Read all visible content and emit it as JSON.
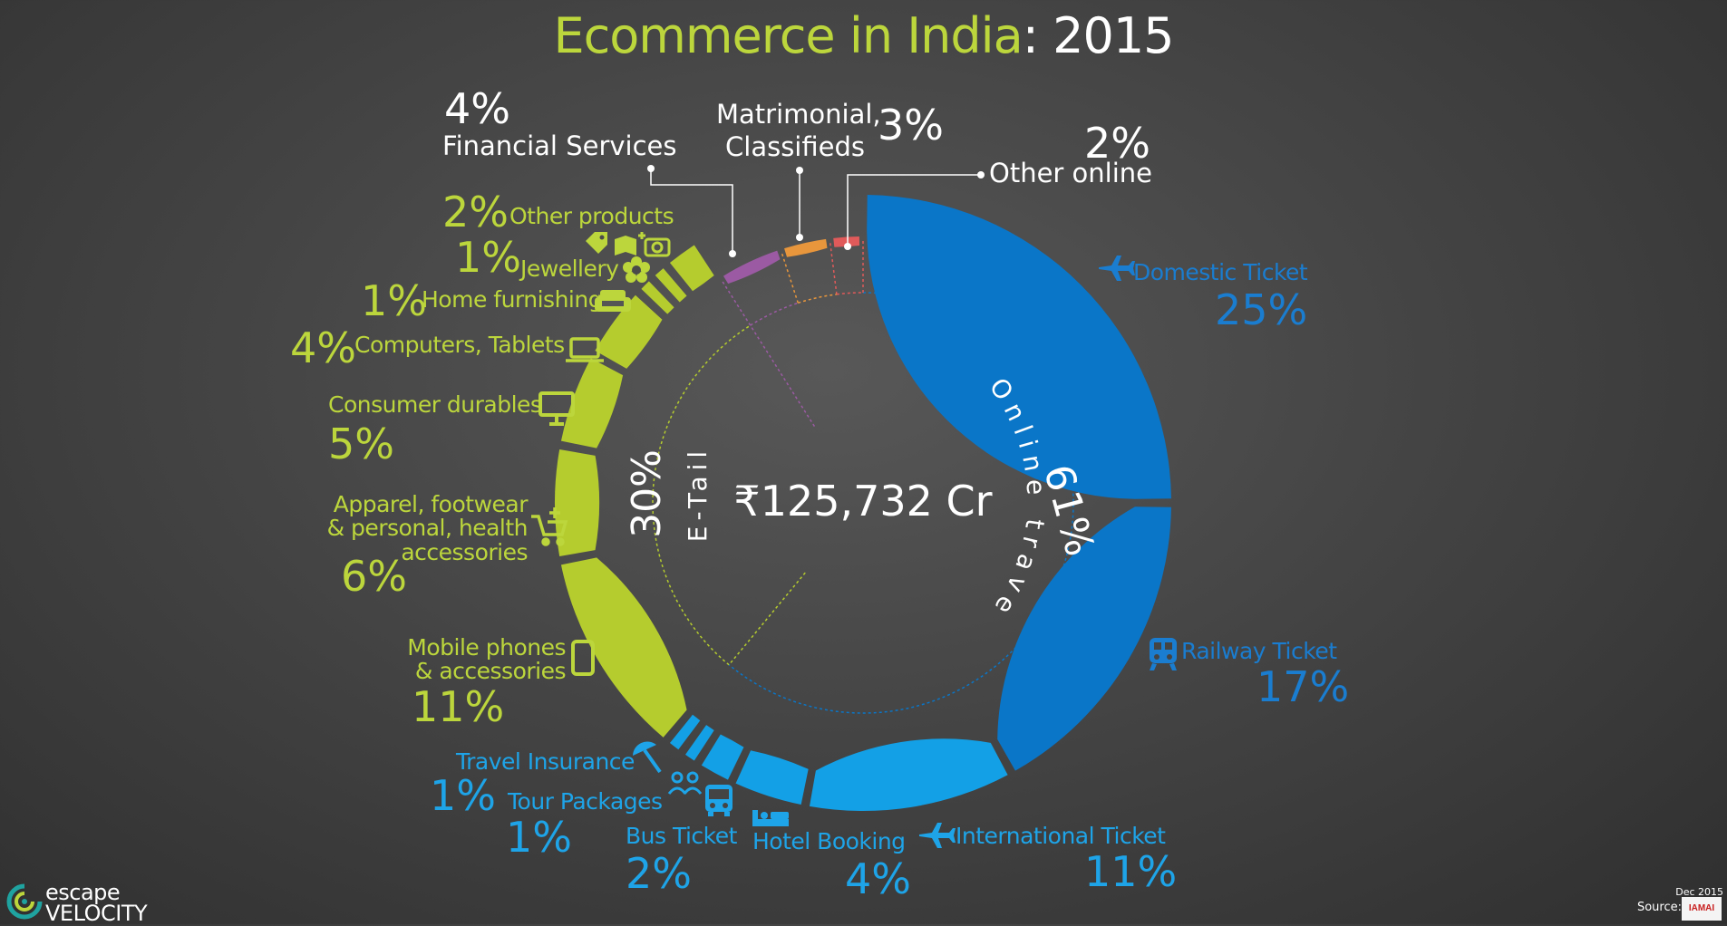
{
  "title": {
    "part1": "Ecommerce in India",
    "sep": ":",
    "part2": " 2015"
  },
  "chart_data": {
    "type": "pie",
    "title": "Ecommerce in India: 2015",
    "center_label": "₹125,732 Cr",
    "groups": [
      {
        "name": "Online travel",
        "value_label": "61%"
      },
      {
        "name": "E-Tail",
        "value_label": "30%"
      }
    ],
    "slices": [
      {
        "name": "Domestic Ticket",
        "value": 25,
        "label": "25%"
      },
      {
        "name": "Railway Ticket",
        "value": 17,
        "label": "17%"
      },
      {
        "name": "International Ticket",
        "value": 11,
        "label": "11%"
      },
      {
        "name": "Hotel Booking",
        "value": 4,
        "label": "4%"
      },
      {
        "name": "Bus Ticket",
        "value": 2,
        "label": "2%"
      },
      {
        "name": "Tour Packages",
        "value": 1,
        "label": "1%"
      },
      {
        "name": "Travel Insurance",
        "value": 1,
        "label": "1%"
      },
      {
        "name": "Mobile phones & accessories",
        "value": 11,
        "label": "11%"
      },
      {
        "name": "Apparel, footwear & personal, health accessories",
        "value": 6,
        "label": "6%"
      },
      {
        "name": "Consumer durables",
        "value": 5,
        "label": "5%"
      },
      {
        "name": "Computers, Tablets",
        "value": 4,
        "label": "4%"
      },
      {
        "name": "Home furnishing",
        "value": 1,
        "label": "1%"
      },
      {
        "name": "Jewellery",
        "value": 1,
        "label": "1%"
      },
      {
        "name": "Other products",
        "value": 2,
        "label": "2%"
      },
      {
        "name": "Financial Services",
        "value": 4,
        "label": "4%"
      },
      {
        "name": "Matrimonial, Classifieds",
        "value": 3,
        "label": "3%"
      },
      {
        "name": "Other online",
        "value": 2,
        "label": "2%"
      }
    ],
    "colors": {
      "online_travel_dark": "#0a76c8",
      "online_travel_light": "#13a0e6",
      "etail": "#b5cc2e",
      "financial": "#9b5aa3",
      "matrimonial": "#e8963c",
      "other_online": "#e05a5a"
    }
  },
  "labels": {
    "domestic": {
      "name": "Domestic Ticket",
      "pct": "25%"
    },
    "railway": {
      "name": "Railway Ticket",
      "pct": "17%"
    },
    "international": {
      "name": "International  Ticket",
      "pct": "11%"
    },
    "hotel": {
      "name": "Hotel Booking",
      "pct": "4%"
    },
    "bus": {
      "name": "Bus Ticket",
      "pct": "2%"
    },
    "tour": {
      "name": "Tour Packages",
      "pct": "1%"
    },
    "insurance": {
      "name": "Travel Insurance",
      "pct": "1%"
    },
    "mobile": {
      "name_line1": "Mobile phones",
      "name_line2": "& accessories",
      "pct": "11%"
    },
    "apparel": {
      "name_line1": "Apparel, footwear",
      "name_line2": "& personal, health",
      "name_line3": "accessories",
      "pct": "6%"
    },
    "durables": {
      "name": "Consumer durables",
      "pct": "5%"
    },
    "computers": {
      "name": "Computers, Tablets",
      "pct": "4%"
    },
    "home": {
      "name": "Home furnishing",
      "pct": "1%"
    },
    "jewellery": {
      "name": "Jewellery",
      "pct": "1%"
    },
    "other_products": {
      "name": "Other products",
      "pct": "2%"
    },
    "financial": {
      "name": "Financial Services",
      "pct": "4%"
    },
    "matrimonial": {
      "name_line1": "Matrimonial,",
      "name_line2": "Classifieds",
      "pct": "3%"
    },
    "other_online": {
      "name": "Other online",
      "pct": "2%"
    }
  },
  "footer": {
    "logo_line1": "escape",
    "logo_line2": "VELOCITY",
    "source_label": "Source:",
    "date": "Dec 2015",
    "source_logo_text": "IAMAI"
  },
  "icons": [
    "plane-icon",
    "train-icon",
    "bus-icon",
    "bed-icon",
    "people-icon",
    "umbrella-icon",
    "mobile-icon",
    "cart-icon",
    "monitor-icon",
    "laptop-icon",
    "sofa-icon",
    "flower-icon",
    "tag-icon",
    "camera-icon"
  ]
}
